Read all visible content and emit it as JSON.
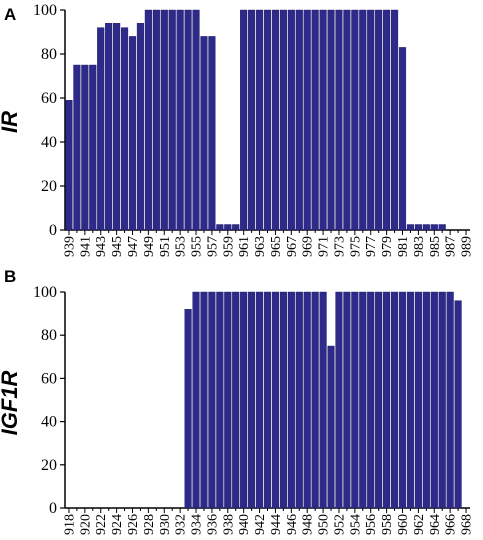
{
  "chart_data": [
    {
      "panel": "A",
      "type": "bar",
      "title": "",
      "xlabel": "",
      "ylabel": "IR",
      "ylim": [
        0,
        100
      ],
      "yticks": [
        "0",
        "20",
        "40",
        "60",
        "80",
        "100"
      ],
      "bar_color": "#2e2a8a",
      "categories": [
        "939",
        "940",
        "941",
        "942",
        "943",
        "944",
        "945",
        "946",
        "947",
        "948",
        "949",
        "950",
        "951",
        "952",
        "953",
        "954",
        "955",
        "956",
        "957",
        "958",
        "959",
        "960",
        "961",
        "962",
        "963",
        "964",
        "965",
        "966",
        "967",
        "968",
        "969",
        "970",
        "971",
        "972",
        "973",
        "974",
        "975",
        "976",
        "977",
        "978",
        "979",
        "980",
        "981",
        "982",
        "983",
        "984",
        "985",
        "986",
        "987",
        "988",
        "989"
      ],
      "xtick_labels": [
        "939",
        "941",
        "943",
        "945",
        "947",
        "949",
        "951",
        "953",
        "955",
        "957",
        "959",
        "961",
        "963",
        "965",
        "967",
        "969",
        "971",
        "973",
        "975",
        "977",
        "979",
        "981",
        "983",
        "985",
        "987",
        "989"
      ],
      "values": [
        59,
        75,
        75,
        75,
        92,
        94,
        94,
        92,
        88,
        94,
        100,
        100,
        100,
        100,
        100,
        100,
        100,
        88,
        88,
        2.5,
        2.5,
        2.5,
        100,
        100,
        100,
        100,
        100,
        100,
        100,
        100,
        100,
        100,
        100,
        100,
        100,
        100,
        100,
        100,
        100,
        100,
        100,
        100,
        83,
        2.5,
        2.5,
        2.5,
        2.5,
        2.5,
        0,
        0,
        0
      ]
    },
    {
      "panel": "B",
      "type": "bar",
      "title": "",
      "xlabel": "",
      "ylabel": "IGF1R",
      "ylim": [
        0,
        100
      ],
      "yticks": [
        "0",
        "20",
        "40",
        "60",
        "80",
        "100"
      ],
      "bar_color": "#2e2a8a",
      "categories": [
        "918",
        "919",
        "920",
        "921",
        "922",
        "923",
        "924",
        "925",
        "926",
        "927",
        "928",
        "929",
        "930",
        "931",
        "932",
        "933",
        "934",
        "935",
        "936",
        "937",
        "938",
        "939",
        "940",
        "941",
        "942",
        "943",
        "944",
        "945",
        "946",
        "947",
        "948",
        "949",
        "950",
        "951",
        "952",
        "953",
        "954",
        "955",
        "956",
        "957",
        "958",
        "959",
        "960",
        "961",
        "962",
        "963",
        "964",
        "965",
        "966",
        "967",
        "968"
      ],
      "xtick_labels": [
        "918",
        "920",
        "922",
        "924",
        "926",
        "928",
        "930",
        "932",
        "934",
        "936",
        "938",
        "940",
        "942",
        "944",
        "946",
        "948",
        "950",
        "952",
        "954",
        "956",
        "958",
        "960",
        "962",
        "964",
        "966",
        "968"
      ],
      "values": [
        0,
        0,
        0,
        0,
        0,
        0,
        0,
        0,
        0,
        0,
        0,
        0,
        0,
        0,
        0,
        92,
        100,
        100,
        100,
        100,
        100,
        100,
        100,
        100,
        100,
        100,
        100,
        100,
        100,
        100,
        100,
        100,
        100,
        75,
        100,
        100,
        100,
        100,
        100,
        100,
        100,
        100,
        100,
        100,
        100,
        100,
        100,
        100,
        100,
        96,
        0
      ]
    }
  ]
}
